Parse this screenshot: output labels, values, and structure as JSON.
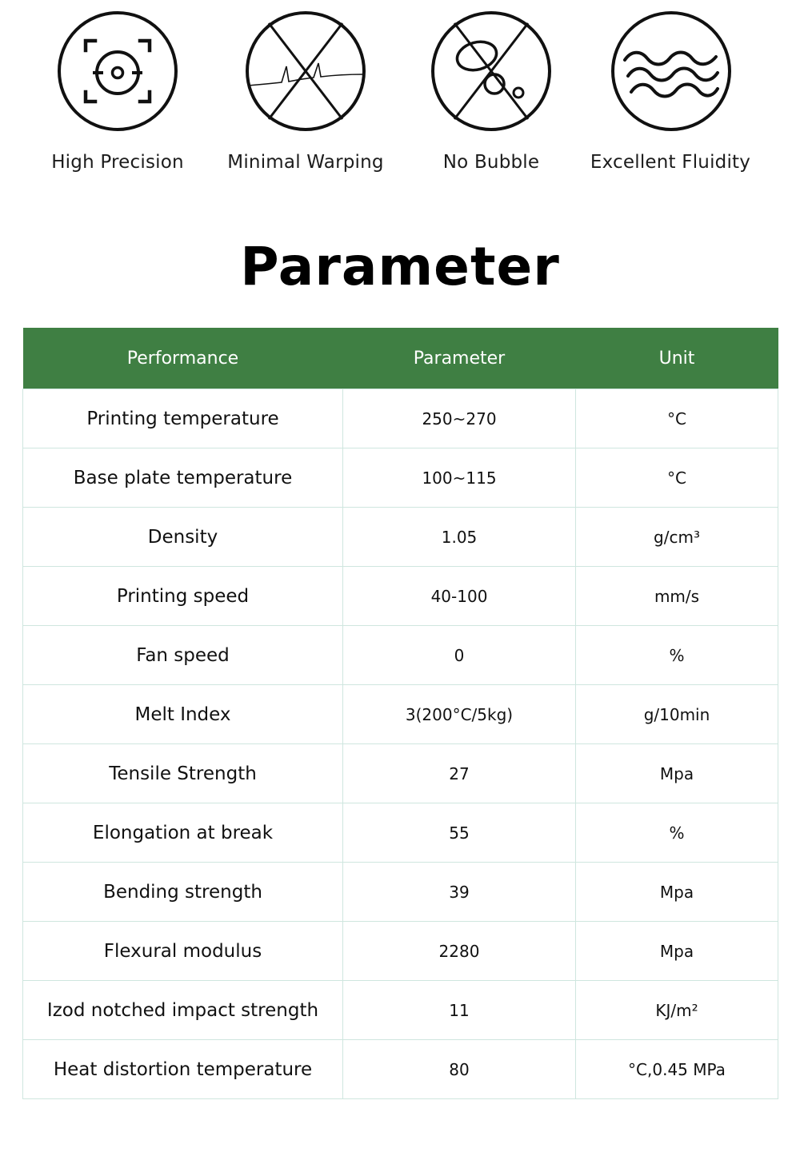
{
  "features": [
    {
      "label": "High Precision",
      "icon": "precision-target-icon"
    },
    {
      "label": "Minimal Warping",
      "icon": "minimal-warping-icon"
    },
    {
      "label": "No Bubble",
      "icon": "no-bubble-icon"
    },
    {
      "label": "Excellent Fluidity",
      "icon": "fluidity-waves-icon"
    }
  ],
  "section_title": "Parameter",
  "table": {
    "headers": [
      "Performance",
      "Parameter",
      "Unit"
    ],
    "header_color": "#3f7f43",
    "rows": [
      {
        "performance": "Printing temperature",
        "parameter": "250~270",
        "unit": "°C"
      },
      {
        "performance": "Base plate temperature",
        "parameter": "100~115",
        "unit": "°C"
      },
      {
        "performance": "Density",
        "parameter": "1.05",
        "unit": "g/cm³"
      },
      {
        "performance": "Printing speed",
        "parameter": "40-100",
        "unit": "mm/s"
      },
      {
        "performance": "Fan speed",
        "parameter": "0",
        "unit": "%"
      },
      {
        "performance": "Melt Index",
        "parameter": "3(200°C/5kg)",
        "unit": "g/10min"
      },
      {
        "performance": "Tensile Strength",
        "parameter": "27",
        "unit": "Mpa"
      },
      {
        "performance": "Elongation at break",
        "parameter": "55",
        "unit": "%"
      },
      {
        "performance": "Bending strength",
        "parameter": "39",
        "unit": "Mpa"
      },
      {
        "performance": "Flexural modulus",
        "parameter": "2280",
        "unit": "Mpa"
      },
      {
        "performance": "Izod notched impact strength",
        "parameter": "11",
        "unit": "KJ/m²"
      },
      {
        "performance": "Heat distortion temperature",
        "parameter": "80",
        "unit": "°C,0.45 MPa"
      }
    ]
  }
}
